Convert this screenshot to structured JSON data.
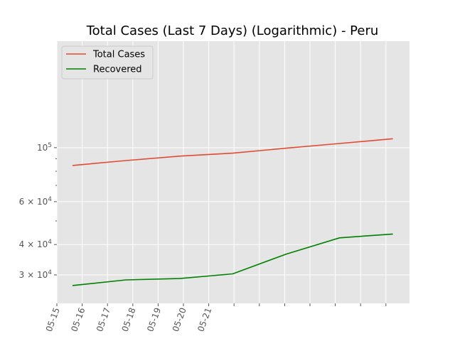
{
  "chart_data": {
    "type": "line",
    "title": "Total Cases (Last 7 Days) (Logarithmic) - Peru",
    "xlabel": "",
    "ylabel": "",
    "y_scale": "log",
    "grid": true,
    "legend_placement": "top-left",
    "x_tick_labels": [
      "05-15",
      "05-16",
      "05-17",
      "05-18",
      "05-19",
      "05-20",
      "05-21"
    ],
    "y_ticks": [
      {
        "value": 100000,
        "base": "10",
        "exp": "5"
      },
      {
        "value": 60000,
        "base": "6 × 10",
        "exp": "4"
      },
      {
        "value": 40000,
        "base": "4 × 10",
        "exp": "4"
      },
      {
        "value": 30000,
        "base": "3 × 10",
        "exp": "4"
      }
    ],
    "x": [
      "2020-05-15",
      "2020-05-16",
      "2020-05-17",
      "2020-05-18",
      "2020-05-19",
      "2020-05-20",
      "2020-05-21"
    ],
    "series": [
      {
        "name": "Total Cases",
        "color": "#e24a33",
        "values": [
          84495,
          88541,
          92273,
          94933,
          99483,
          104020,
          108769
        ]
      },
      {
        "name": "Recovered",
        "color": "#008000",
        "values": [
          27147,
          28621,
          28995,
          30306,
          36524,
          42611,
          44177
        ]
      }
    ]
  }
}
